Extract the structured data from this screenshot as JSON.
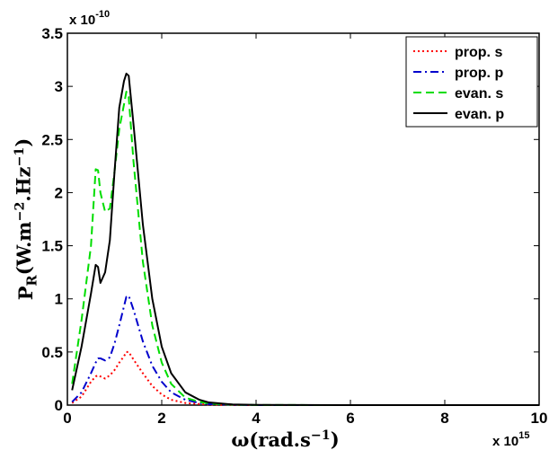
{
  "chart_data": {
    "type": "line",
    "xlabel": "ω(rad.s⁻¹)",
    "ylabel": "P_R(W.m⁻².Hz⁻¹)",
    "x_multiplier": "x 10^15",
    "y_multiplier": "x 10^-10",
    "xlim": [
      0,
      10
    ],
    "ylim": [
      0,
      3.5
    ],
    "x_ticks": [
      0,
      2,
      4,
      6,
      8,
      10
    ],
    "y_ticks": [
      0,
      0.5,
      1,
      1.5,
      2,
      2.5,
      3,
      3.5
    ],
    "grid": false,
    "legend_position": "top-right",
    "x": [
      0.1,
      0.3,
      0.5,
      0.6,
      0.65,
      0.7,
      0.8,
      0.9,
      1.0,
      1.1,
      1.2,
      1.25,
      1.3,
      1.4,
      1.6,
      1.8,
      2.0,
      2.2,
      2.5,
      2.8,
      3.0,
      3.5,
      4.0,
      6.0,
      8.0,
      10.0
    ],
    "series": [
      {
        "name": "prop. s",
        "color": "#ff0000",
        "style": "dotted",
        "values": [
          0.02,
          0.08,
          0.22,
          0.27,
          0.28,
          0.27,
          0.25,
          0.28,
          0.33,
          0.4,
          0.46,
          0.5,
          0.5,
          0.43,
          0.3,
          0.18,
          0.1,
          0.05,
          0.02,
          0.01,
          0.005,
          0.0,
          0.0,
          0.0,
          0.0,
          0.0
        ]
      },
      {
        "name": "prop. p",
        "color": "#0000cc",
        "style": "dashdot",
        "values": [
          0.03,
          0.12,
          0.3,
          0.4,
          0.44,
          0.44,
          0.42,
          0.45,
          0.58,
          0.75,
          0.93,
          1.02,
          1.03,
          0.9,
          0.6,
          0.37,
          0.22,
          0.12,
          0.05,
          0.02,
          0.01,
          0.003,
          0.0,
          0.0,
          0.0,
          0.0
        ]
      },
      {
        "name": "evan. s",
        "color": "#00dd00",
        "style": "dashed",
        "values": [
          0.2,
          0.8,
          1.5,
          2.22,
          2.21,
          2.0,
          1.82,
          1.85,
          2.2,
          2.6,
          2.83,
          2.95,
          2.9,
          2.3,
          1.35,
          0.75,
          0.4,
          0.2,
          0.07,
          0.03,
          0.015,
          0.004,
          0.001,
          0.0,
          0.0,
          0.0
        ]
      },
      {
        "name": "evan. p",
        "color": "#000000",
        "style": "solid",
        "values": [
          0.14,
          0.55,
          1.05,
          1.32,
          1.3,
          1.15,
          1.25,
          1.55,
          2.2,
          2.8,
          3.05,
          3.12,
          3.1,
          2.65,
          1.7,
          1.0,
          0.55,
          0.3,
          0.12,
          0.05,
          0.025,
          0.006,
          0.002,
          0.0,
          0.0,
          0.0
        ]
      }
    ]
  }
}
